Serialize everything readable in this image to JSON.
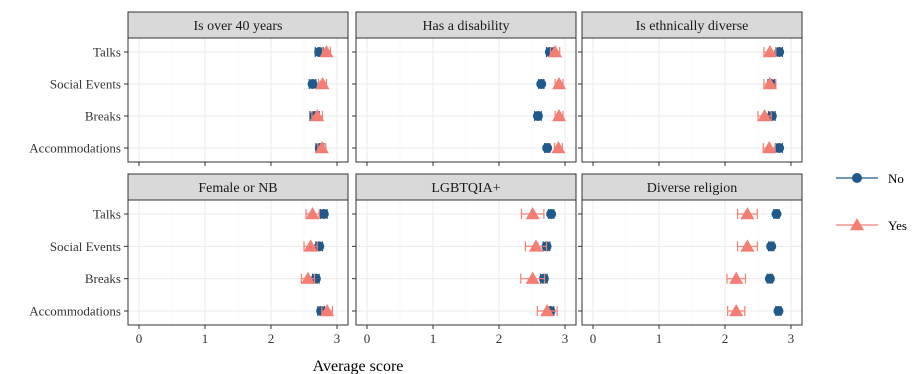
{
  "chart_data": {
    "type": "scatter",
    "xlabel": "Average score",
    "ylabel": "",
    "xlim": [
      0,
      3
    ],
    "x_ticks": [
      "0",
      "1",
      "2",
      "3"
    ],
    "categories": [
      "Talks",
      "Social Events",
      "Breaks",
      "Accommodations"
    ],
    "grid": true,
    "legend": {
      "placement": "right",
      "entries": [
        {
          "label": "No",
          "shape": "circle",
          "color": "#1f5a8a"
        },
        {
          "label": "Yes",
          "shape": "triangle",
          "color": "#f47e73"
        }
      ]
    },
    "panels": [
      {
        "title": "Is over 40 years",
        "series": [
          {
            "name": "No",
            "values": [
              2.73,
              2.63,
              2.66,
              2.74
            ],
            "err": [
              0.06,
              0.05,
              0.07,
              0.06
            ]
          },
          {
            "name": "Yes",
            "values": [
              2.84,
              2.78,
              2.7,
              2.77
            ],
            "err": [
              0.06,
              0.06,
              0.08,
              0.06
            ]
          }
        ]
      },
      {
        "title": "Has a disability",
        "series": [
          {
            "name": "No",
            "values": [
              2.77,
              2.64,
              2.59,
              2.73
            ],
            "err": [
              0.05,
              0.04,
              0.05,
              0.04
            ]
          },
          {
            "name": "Yes",
            "values": [
              2.85,
              2.91,
              2.91,
              2.9
            ],
            "err": [
              0.07,
              0.06,
              0.06,
              0.06
            ]
          }
        ]
      },
      {
        "title": "Is ethnically diverse",
        "series": [
          {
            "name": "No",
            "values": [
              2.82,
              2.7,
              2.71,
              2.82
            ],
            "err": [
              0.05,
              0.05,
              0.05,
              0.05
            ]
          },
          {
            "name": "Yes",
            "values": [
              2.68,
              2.68,
              2.6,
              2.67
            ],
            "err": [
              0.09,
              0.09,
              0.1,
              0.09
            ]
          }
        ]
      },
      {
        "title": "Female or NB",
        "series": [
          {
            "name": "No",
            "values": [
              2.8,
              2.73,
              2.68,
              2.76
            ],
            "err": [
              0.05,
              0.05,
              0.05,
              0.05
            ]
          },
          {
            "name": "Yes",
            "values": [
              2.63,
              2.6,
              2.56,
              2.85
            ],
            "err": [
              0.1,
              0.1,
              0.1,
              0.08
            ]
          }
        ]
      },
      {
        "title": "LGBTQIA+",
        "series": [
          {
            "name": "No",
            "values": [
              2.79,
              2.72,
              2.68,
              2.78
            ],
            "err": [
              0.04,
              0.05,
              0.05,
              0.05
            ]
          },
          {
            "name": "Yes",
            "values": [
              2.51,
              2.56,
              2.51,
              2.73
            ],
            "err": [
              0.17,
              0.16,
              0.18,
              0.15
            ]
          }
        ]
      },
      {
        "title": "Diverse religion",
        "series": [
          {
            "name": "No",
            "values": [
              2.78,
              2.7,
              2.68,
              2.81
            ],
            "err": [
              0.04,
              0.04,
              0.04,
              0.04
            ]
          },
          {
            "name": "Yes",
            "values": [
              2.34,
              2.34,
              2.17,
              2.17
            ],
            "err": [
              0.15,
              0.15,
              0.14,
              0.13
            ]
          }
        ]
      }
    ]
  }
}
